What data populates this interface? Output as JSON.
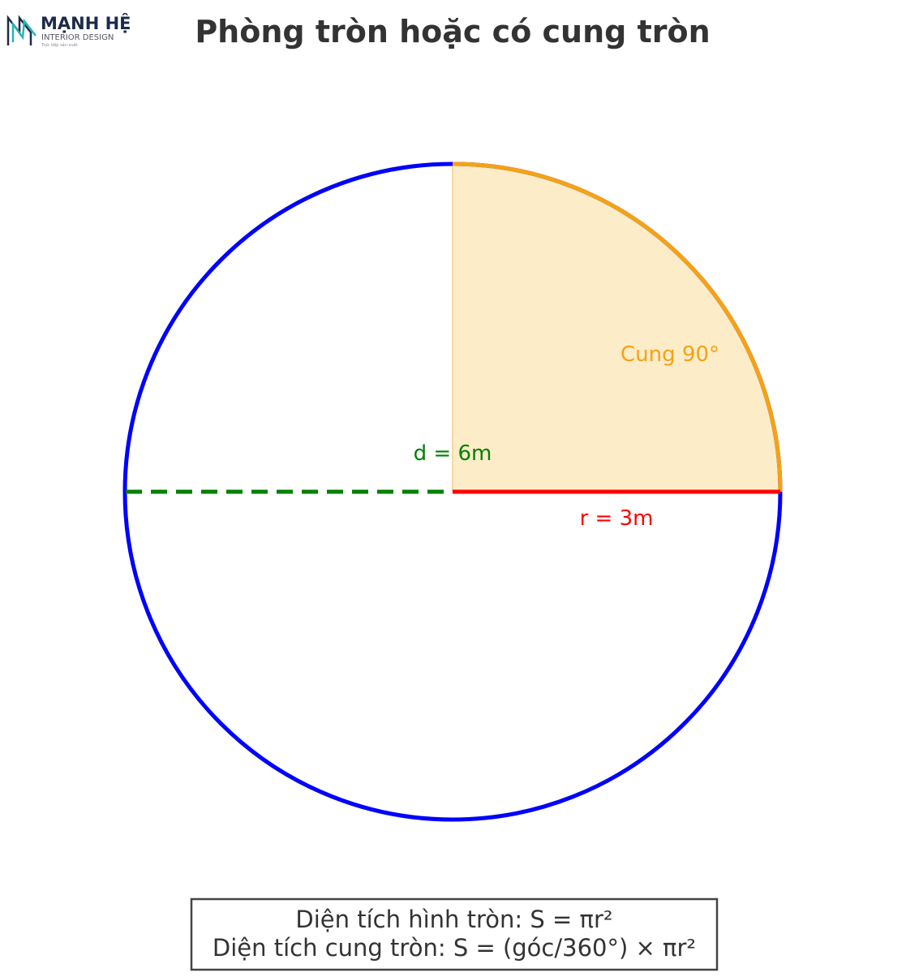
{
  "logo": {
    "name": "MẠNH HỆ",
    "subtitle": "INTERIOR DESIGN",
    "tagline": "Trực tiếp sản xuất"
  },
  "title": "Phòng tròn hoặc có cung tròn",
  "labels": {
    "arc": "Cung 90°",
    "diameter": "d = 6m",
    "radius": "r = 3m"
  },
  "formulas": [
    "Diện tích hình tròn: S = πr²",
    "Diện tích cung tròn: S = (góc/360°) × πr²"
  ]
}
